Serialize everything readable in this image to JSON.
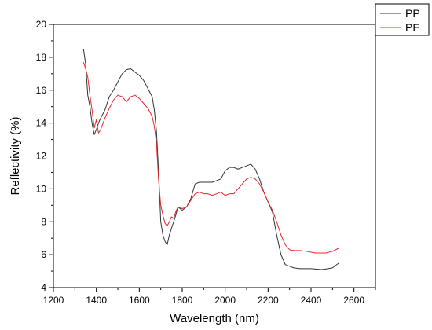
{
  "chart_data": {
    "type": "line",
    "title": "",
    "xlabel": "Wavelength (nm)",
    "ylabel": "Reflectivity (%)",
    "xlim": [
      1200,
      2700
    ],
    "ylim": [
      4,
      20
    ],
    "x_ticks": [
      1200,
      1400,
      1600,
      1800,
      2000,
      2200,
      2400,
      2600
    ],
    "y_ticks": [
      4,
      6,
      8,
      10,
      12,
      14,
      16,
      18,
      20
    ],
    "grid": false,
    "legend_position": "top-right",
    "series": [
      {
        "name": "PP",
        "color": "#333333",
        "points": [
          [
            1340,
            18.5
          ],
          [
            1350,
            17.6
          ],
          [
            1360,
            15.7
          ],
          [
            1370,
            15.0
          ],
          [
            1380,
            14.0
          ],
          [
            1390,
            13.3
          ],
          [
            1400,
            13.6
          ],
          [
            1410,
            14.0
          ],
          [
            1420,
            14.3
          ],
          [
            1440,
            14.8
          ],
          [
            1460,
            15.6
          ],
          [
            1480,
            16.0
          ],
          [
            1500,
            16.5
          ],
          [
            1520,
            17.0
          ],
          [
            1540,
            17.25
          ],
          [
            1560,
            17.3
          ],
          [
            1580,
            17.1
          ],
          [
            1600,
            16.9
          ],
          [
            1620,
            16.6
          ],
          [
            1640,
            16.1
          ],
          [
            1660,
            15.6
          ],
          [
            1670,
            14.8
          ],
          [
            1680,
            13.5
          ],
          [
            1690,
            11.0
          ],
          [
            1700,
            8.0
          ],
          [
            1710,
            7.2
          ],
          [
            1720,
            6.8
          ],
          [
            1730,
            6.6
          ],
          [
            1740,
            7.2
          ],
          [
            1750,
            7.6
          ],
          [
            1760,
            8.0
          ],
          [
            1770,
            8.4
          ],
          [
            1780,
            8.9
          ],
          [
            1800,
            8.7
          ],
          [
            1820,
            8.9
          ],
          [
            1840,
            9.4
          ],
          [
            1860,
            10.3
          ],
          [
            1880,
            10.4
          ],
          [
            1900,
            10.4
          ],
          [
            1920,
            10.4
          ],
          [
            1940,
            10.4
          ],
          [
            1960,
            10.5
          ],
          [
            1980,
            10.6
          ],
          [
            2000,
            11.1
          ],
          [
            2020,
            11.3
          ],
          [
            2040,
            11.3
          ],
          [
            2060,
            11.2
          ],
          [
            2080,
            11.3
          ],
          [
            2100,
            11.4
          ],
          [
            2120,
            11.5
          ],
          [
            2140,
            11.2
          ],
          [
            2160,
            10.6
          ],
          [
            2180,
            9.8
          ],
          [
            2200,
            9.2
          ],
          [
            2220,
            8.6
          ],
          [
            2240,
            7.2
          ],
          [
            2260,
            6.0
          ],
          [
            2280,
            5.4
          ],
          [
            2300,
            5.3
          ],
          [
            2320,
            5.2
          ],
          [
            2350,
            5.15
          ],
          [
            2400,
            5.15
          ],
          [
            2450,
            5.1
          ],
          [
            2480,
            5.15
          ],
          [
            2500,
            5.2
          ],
          [
            2530,
            5.5
          ]
        ]
      },
      {
        "name": "PE",
        "color": "#e8262a",
        "points": [
          [
            1340,
            17.7
          ],
          [
            1350,
            17.3
          ],
          [
            1360,
            16.8
          ],
          [
            1370,
            15.7
          ],
          [
            1380,
            14.8
          ],
          [
            1390,
            13.7
          ],
          [
            1400,
            14.2
          ],
          [
            1410,
            13.4
          ],
          [
            1420,
            13.6
          ],
          [
            1440,
            14.3
          ],
          [
            1460,
            14.9
          ],
          [
            1480,
            15.4
          ],
          [
            1500,
            15.7
          ],
          [
            1520,
            15.6
          ],
          [
            1540,
            15.3
          ],
          [
            1560,
            15.6
          ],
          [
            1580,
            15.7
          ],
          [
            1600,
            15.5
          ],
          [
            1620,
            15.2
          ],
          [
            1640,
            14.9
          ],
          [
            1660,
            14.4
          ],
          [
            1670,
            13.8
          ],
          [
            1680,
            12.8
          ],
          [
            1690,
            10.5
          ],
          [
            1700,
            9.0
          ],
          [
            1710,
            8.4
          ],
          [
            1720,
            7.9
          ],
          [
            1730,
            7.75
          ],
          [
            1740,
            8.0
          ],
          [
            1750,
            8.3
          ],
          [
            1760,
            8.2
          ],
          [
            1770,
            8.6
          ],
          [
            1780,
            8.9
          ],
          [
            1800,
            8.8
          ],
          [
            1820,
            8.9
          ],
          [
            1840,
            9.3
          ],
          [
            1860,
            9.7
          ],
          [
            1880,
            9.8
          ],
          [
            1900,
            9.7
          ],
          [
            1920,
            9.7
          ],
          [
            1940,
            9.6
          ],
          [
            1960,
            9.7
          ],
          [
            1980,
            9.8
          ],
          [
            2000,
            9.6
          ],
          [
            2020,
            9.7
          ],
          [
            2040,
            9.7
          ],
          [
            2060,
            10.0
          ],
          [
            2080,
            10.3
          ],
          [
            2100,
            10.6
          ],
          [
            2120,
            10.7
          ],
          [
            2140,
            10.6
          ],
          [
            2160,
            10.3
          ],
          [
            2180,
            9.8
          ],
          [
            2200,
            9.2
          ],
          [
            2220,
            8.7
          ],
          [
            2240,
            8.0
          ],
          [
            2260,
            7.2
          ],
          [
            2280,
            6.6
          ],
          [
            2300,
            6.3
          ],
          [
            2320,
            6.25
          ],
          [
            2350,
            6.25
          ],
          [
            2380,
            6.2
          ],
          [
            2400,
            6.15
          ],
          [
            2420,
            6.1
          ],
          [
            2440,
            6.1
          ],
          [
            2470,
            6.1
          ],
          [
            2500,
            6.2
          ],
          [
            2530,
            6.4
          ]
        ]
      }
    ]
  }
}
